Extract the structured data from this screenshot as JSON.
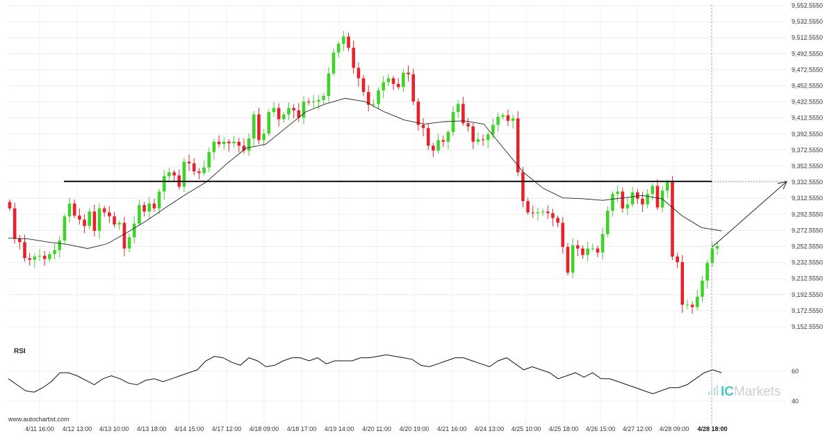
{
  "watermark": "www.autochartist.com",
  "brand": {
    "ic": "IC",
    "rest": "Markets"
  },
  "chart_data": [
    {
      "type": "candlestick",
      "title": "",
      "ylim": [
        9135,
        9556
      ],
      "y_ticks": [
        "9,552.5550",
        "9,532.5550",
        "9,512.5550",
        "9,492.5550",
        "9,472.5550",
        "9,452.5550",
        "9,432.5550",
        "9,412.5550",
        "9,392.5550",
        "9,372.5550",
        "9,352.5550",
        "9,332.5550",
        "9,312.5550",
        "9,292.5550",
        "9,272.5550",
        "9,252.5550",
        "9,232.5550",
        "9,212.5550",
        "9,192.5550",
        "9,172.5550",
        "9,152.5550"
      ],
      "x_labels": [
        "4/11 16:00",
        "4/12 13:00",
        "4/13 10:00",
        "4/13 18:00",
        "4/14 15:00",
        "4/17 12:00",
        "4/18 09:00",
        "4/18 17:00",
        "4/19 14:00",
        "4/20 11:00",
        "4/20 19:00",
        "4/21 16:00",
        "4/24 13:00",
        "4/25 10:00",
        "4/25 18:00",
        "4/26 15:00",
        "4/27 12:00",
        "4/28 09:00",
        "4/28 18:00"
      ],
      "current_x_label": "4/28 18:00",
      "grid": true,
      "resistance_level": 9333.6,
      "projection": {
        "from": 9254.2,
        "to": 9333.6
      },
      "close_series": [
        9300,
        9262,
        9258,
        9238,
        9236,
        9240,
        9241,
        9237,
        9243,
        9248,
        9260,
        9290,
        9306,
        9291,
        9286,
        9278,
        9296,
        9272,
        9300,
        9295,
        9290,
        9280,
        9282,
        9250,
        9264,
        9281,
        9304,
        9296,
        9306,
        9300,
        9321,
        9340,
        9345,
        9341,
        9327,
        9358,
        9356,
        9346,
        9344,
        9351,
        9370,
        9383,
        9380,
        9383,
        9381,
        9383,
        9378,
        9372,
        9387,
        9417,
        9385,
        9393,
        9420,
        9425,
        9411,
        9417,
        9425,
        9422,
        9413,
        9433,
        9432,
        9433,
        9435,
        9440,
        9468,
        9494,
        9505,
        9514,
        9500,
        9475,
        9462,
        9445,
        9429,
        9430,
        9447,
        9457,
        9462,
        9455,
        9451,
        9469,
        9467,
        9433,
        9404,
        9400,
        9378,
        9372,
        9385,
        9383,
        9395,
        9420,
        9430,
        9406,
        9402,
        9383,
        9386,
        9385,
        9392,
        9404,
        9414,
        9416,
        9409,
        9412,
        9345,
        9309,
        9295,
        9294,
        9295,
        9296,
        9294,
        9288,
        9282,
        9252,
        9220,
        9254,
        9250,
        9242,
        9250,
        9250,
        9245,
        9268,
        9297,
        9318,
        9321,
        9300,
        9305,
        9320,
        9312,
        9305,
        9318,
        9328,
        9301,
        9322,
        9333,
        9240,
        9233,
        9180,
        9180,
        9177,
        9190,
        9210,
        9232,
        9250,
        9253
      ],
      "moving_average": [
        9263,
        9262,
        9258,
        9255,
        9250,
        9256,
        9270,
        9285,
        9302,
        9318,
        9333,
        9355,
        9375,
        9380,
        9400,
        9420,
        9430,
        9437,
        9433,
        9420,
        9410,
        9405,
        9408,
        9409,
        9405,
        9375,
        9345,
        9325,
        9313,
        9312,
        9310,
        9313,
        9316,
        9312,
        9291,
        9276,
        9272
      ]
    },
    {
      "type": "line",
      "name": "RSI",
      "ylim": [
        30,
        75
      ],
      "y_ticks": [
        "60",
        "40"
      ],
      "values": [
        55,
        51,
        47,
        46,
        49,
        53,
        59,
        59,
        57,
        54,
        51,
        55,
        57,
        55,
        52,
        51,
        54,
        55,
        53,
        55,
        57,
        59,
        61,
        67,
        70,
        69,
        66,
        64,
        69,
        67,
        63,
        64,
        67,
        69,
        69,
        67,
        69,
        65,
        67,
        67,
        67,
        69,
        69,
        70,
        71,
        70,
        69,
        68,
        64,
        63,
        65,
        67,
        69,
        69,
        67,
        65,
        63,
        67,
        69,
        65,
        61,
        63,
        61,
        59,
        55,
        57,
        59,
        56,
        59,
        55,
        55,
        53,
        51,
        49,
        47,
        45,
        47,
        49,
        49,
        51,
        55,
        59,
        61,
        59
      ]
    }
  ]
}
